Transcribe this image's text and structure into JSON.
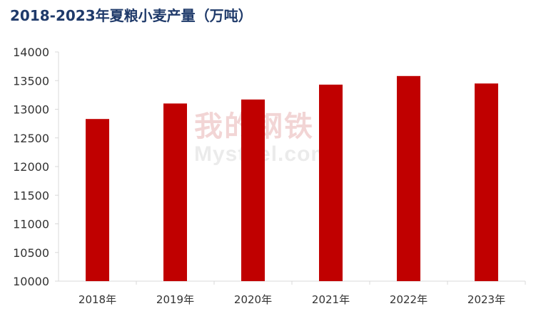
{
  "chart_data": {
    "type": "bar",
    "title": "2018-2023年夏粮小麦产量（万吨）",
    "categories": [
      "2018年",
      "2019年",
      "2020年",
      "2021年",
      "2022年",
      "2023年"
    ],
    "values": [
      12830,
      13100,
      13170,
      13430,
      13580,
      13450
    ],
    "xlabel": "",
    "ylabel": "",
    "ylim": [
      10000,
      14000
    ],
    "yticks": [
      "10000",
      "10500",
      "11000",
      "11500",
      "12000",
      "12500",
      "13000",
      "13500",
      "14000"
    ],
    "bar_color": "#c00000",
    "grid": false,
    "legend": "none"
  },
  "watermark": {
    "cn": "我的钢铁",
    "en": "Mysteel.com"
  }
}
